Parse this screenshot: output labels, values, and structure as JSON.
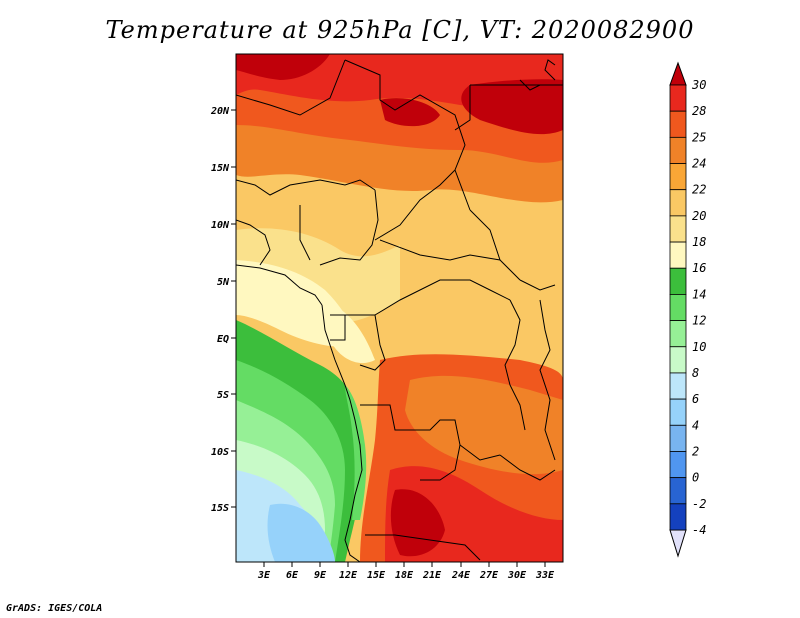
{
  "title": "Temperature at 925hPa [C], VT: 2020082900",
  "credit": "GrADS: IGES/COLA",
  "lat_labels": [
    "20N",
    "15N",
    "10N",
    "5N",
    "EQ",
    "5S",
    "10S",
    "15S"
  ],
  "lon_labels": [
    "3E",
    "6E",
    "9E",
    "12E",
    "15E",
    "18E",
    "21E",
    "24E",
    "27E",
    "30E",
    "33E"
  ],
  "colorbar": {
    "labels": [
      "30",
      "28",
      "25",
      "24",
      "22",
      "20",
      "18",
      "16",
      "14",
      "12",
      "10",
      "8",
      "6",
      "4",
      "2",
      "0",
      "-2",
      "-4"
    ],
    "colors": [
      "#c0000a",
      "#e8281e",
      "#f0581e",
      "#f08228",
      "#f9a636",
      "#fac864",
      "#fae18c",
      "#fff8c0",
      "#3cbe3c",
      "#64dc64",
      "#96f096",
      "#c8fac8",
      "#bde6fa",
      "#96d2fa",
      "#78b4f0",
      "#5096f0",
      "#2864d2",
      "#1441be",
      "#0a0a78",
      "#e1e1fa"
    ]
  }
}
